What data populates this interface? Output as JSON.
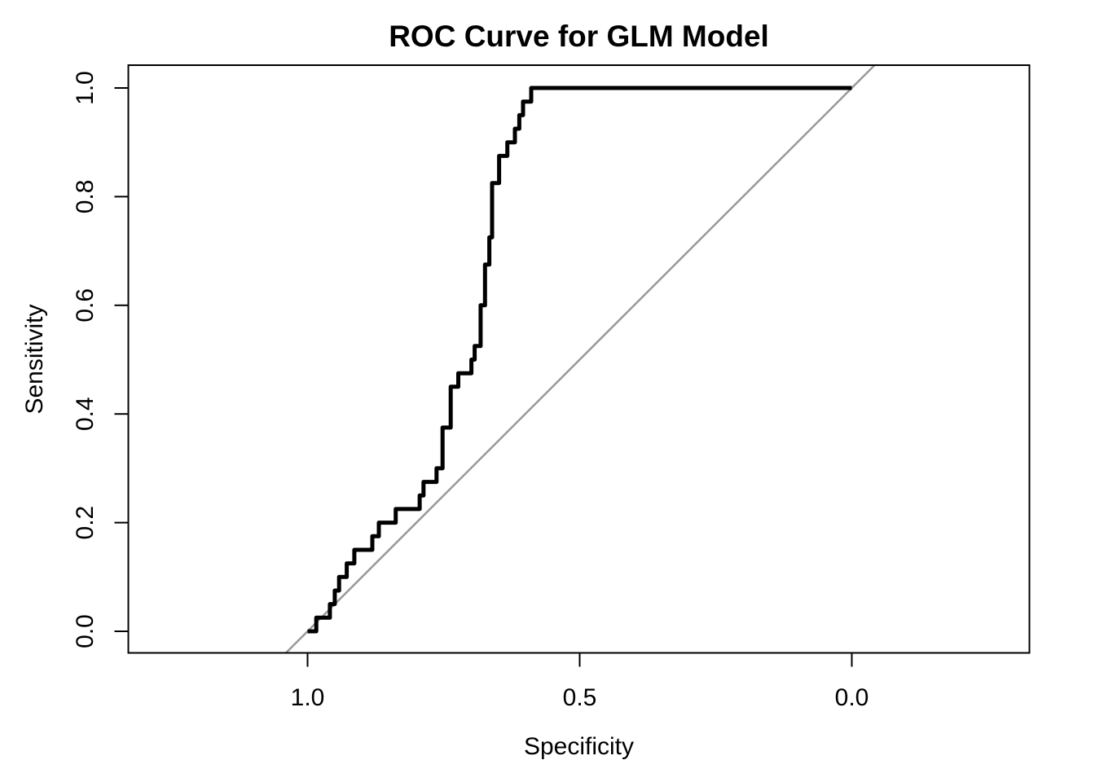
{
  "chart_data": {
    "type": "line",
    "subtype": "roc-step-curve",
    "title": "ROC Curve for GLM Model",
    "xlabel": "Specificity",
    "ylabel": "Sensitivity",
    "x_axis": {
      "reversed": true,
      "range": [
        1.0,
        0.0
      ],
      "ticks": [
        1.0,
        0.5,
        0.0
      ],
      "tick_labels": [
        "1.0",
        "0.5",
        "0.0"
      ]
    },
    "y_axis": {
      "range": [
        0.0,
        1.0
      ],
      "ticks": [
        1.0,
        0.8,
        0.6,
        0.4,
        0.2,
        0.0
      ],
      "tick_labels": [
        "1.0",
        "0.8",
        "0.6",
        "0.4",
        "0.2",
        "0.0"
      ]
    },
    "grid": false,
    "legend": null,
    "colors": {
      "curve": "#000000",
      "reference_line": "#999999",
      "box": "#000000",
      "text": "#000000",
      "background": "#ffffff"
    },
    "series": [
      {
        "name": "ROC curve",
        "color": "#000000",
        "line_width": 5,
        "points_format": [
          "specificity",
          "sensitivity"
        ],
        "points": [
          [
            1.0,
            0.0
          ],
          [
            0.984,
            0.0
          ],
          [
            0.984,
            0.025
          ],
          [
            0.959,
            0.025
          ],
          [
            0.959,
            0.05
          ],
          [
            0.95,
            0.05
          ],
          [
            0.95,
            0.075
          ],
          [
            0.942,
            0.075
          ],
          [
            0.942,
            0.1
          ],
          [
            0.928,
            0.1
          ],
          [
            0.928,
            0.125
          ],
          [
            0.914,
            0.125
          ],
          [
            0.914,
            0.15
          ],
          [
            0.881,
            0.15
          ],
          [
            0.881,
            0.175
          ],
          [
            0.869,
            0.175
          ],
          [
            0.869,
            0.2
          ],
          [
            0.838,
            0.2
          ],
          [
            0.838,
            0.225
          ],
          [
            0.794,
            0.225
          ],
          [
            0.794,
            0.25
          ],
          [
            0.787,
            0.25
          ],
          [
            0.787,
            0.275
          ],
          [
            0.763,
            0.275
          ],
          [
            0.763,
            0.3
          ],
          [
            0.752,
            0.3
          ],
          [
            0.752,
            0.375
          ],
          [
            0.737,
            0.375
          ],
          [
            0.737,
            0.45
          ],
          [
            0.723,
            0.45
          ],
          [
            0.723,
            0.475
          ],
          [
            0.699,
            0.475
          ],
          [
            0.699,
            0.5
          ],
          [
            0.693,
            0.5
          ],
          [
            0.693,
            0.525
          ],
          [
            0.682,
            0.525
          ],
          [
            0.682,
            0.6
          ],
          [
            0.674,
            0.6
          ],
          [
            0.674,
            0.675
          ],
          [
            0.666,
            0.675
          ],
          [
            0.666,
            0.725
          ],
          [
            0.661,
            0.725
          ],
          [
            0.661,
            0.825
          ],
          [
            0.648,
            0.825
          ],
          [
            0.648,
            0.875
          ],
          [
            0.633,
            0.875
          ],
          [
            0.633,
            0.9
          ],
          [
            0.619,
            0.9
          ],
          [
            0.619,
            0.925
          ],
          [
            0.611,
            0.925
          ],
          [
            0.611,
            0.95
          ],
          [
            0.604,
            0.95
          ],
          [
            0.604,
            0.975
          ],
          [
            0.589,
            0.975
          ],
          [
            0.589,
            1.0
          ],
          [
            0.0,
            1.0
          ]
        ]
      }
    ],
    "reference_line": {
      "name": "chance diagonal",
      "color": "#999999",
      "line_width": 2.5,
      "points_format": [
        "specificity",
        "sensitivity"
      ],
      "points": [
        [
          1.0397,
          -0.0397
        ],
        [
          -0.0419,
          1.0419
        ]
      ]
    }
  }
}
